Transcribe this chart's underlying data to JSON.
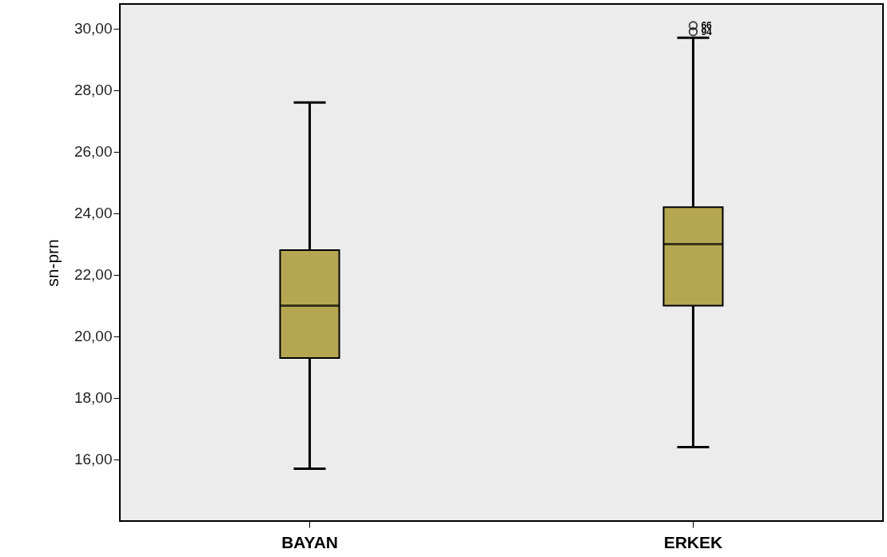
{
  "chart_data": {
    "type": "box",
    "ylabel": "sn-prn",
    "categories": [
      "BAYAN",
      "ERKEK"
    ],
    "boxes": [
      {
        "low": 15.7,
        "q1": 19.3,
        "median": 21.0,
        "q3": 22.8,
        "high": 27.6
      },
      {
        "low": 16.4,
        "q1": 21.0,
        "median": 23.0,
        "q3": 24.2,
        "high": 29.7,
        "outliers": [
          30.1,
          29.9
        ]
      }
    ],
    "color": "#b5a752",
    "marker": "circle",
    "ylim": [
      14,
      30.8
    ],
    "yticks": [
      {
        "value": 16,
        "label": "16,00"
      },
      {
        "value": 18,
        "label": "18,00"
      },
      {
        "value": 20,
        "label": "20,00"
      },
      {
        "value": 22,
        "label": "22,00"
      },
      {
        "value": 24,
        "label": "24,00"
      },
      {
        "value": 26,
        "label": "26,00"
      },
      {
        "value": 28,
        "label": "28,00"
      },
      {
        "value": 30,
        "label": "30,00"
      }
    ],
    "annotations": [
      "66",
      "94"
    ]
  }
}
